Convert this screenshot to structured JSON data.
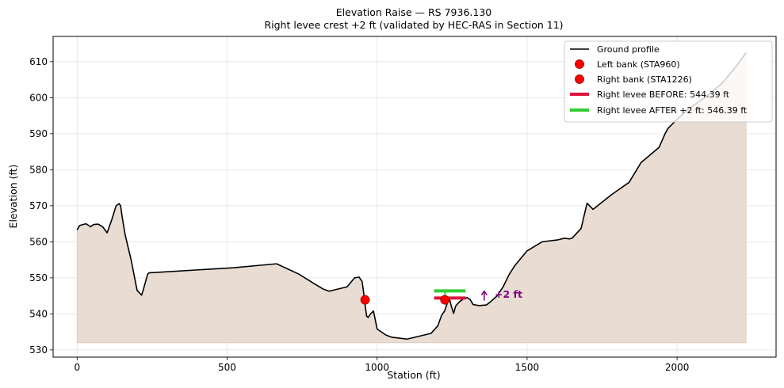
{
  "chart_data": {
    "type": "line",
    "title": "Elevation Raise — RS 7936.130",
    "subtitle": "Right levee crest +2 ft (validated by HEC-RAS in Section 11)",
    "xlabel": "Station (ft)",
    "ylabel": "Elevation (ft)",
    "xlim": [
      -80,
      2330
    ],
    "ylim": [
      528,
      617
    ],
    "xticks": [
      0,
      500,
      1000,
      1500,
      2000
    ],
    "yticks": [
      530,
      540,
      550,
      560,
      570,
      580,
      590,
      600,
      610
    ],
    "grid": true,
    "legend_position": "top-right",
    "fill_base": 532,
    "fill_color": "#e9ddd3",
    "ground_profile": {
      "name": "Ground profile",
      "color": "#000000",
      "x": [
        0,
        8,
        20,
        30,
        45,
        55,
        70,
        85,
        100,
        115,
        130,
        140,
        145,
        150,
        160,
        180,
        200,
        215,
        220,
        235,
        240,
        520,
        665,
        740,
        790,
        820,
        840,
        900,
        925,
        940,
        950,
        955,
        960,
        965,
        970,
        978,
        988,
        1000,
        1030,
        1050,
        1100,
        1180,
        1195,
        1202,
        1215,
        1225,
        1230,
        1240,
        1248,
        1255,
        1262,
        1275,
        1290,
        1300,
        1310,
        1320,
        1340,
        1365,
        1380,
        1400,
        1420,
        1440,
        1460,
        1500,
        1550,
        1600,
        1625,
        1640,
        1650,
        1680,
        1695,
        1700,
        1705,
        1720,
        1780,
        1840,
        1880,
        1940,
        1960,
        1970,
        2000,
        2040,
        2100,
        2150,
        2200,
        2230
      ],
      "y": [
        563.3,
        564.5,
        564.8,
        565.0,
        564.2,
        564.8,
        564.9,
        564.2,
        562.5,
        566.0,
        570.0,
        570.6,
        570.0,
        567.0,
        562.0,
        555.0,
        546.5,
        545.2,
        546.5,
        551.0,
        551.4,
        552.8,
        553.9,
        551.0,
        548.4,
        546.9,
        546.3,
        547.5,
        550.0,
        550.2,
        549.0,
        546.0,
        542.5,
        539.4,
        539.0,
        540.0,
        540.8,
        535.8,
        534.1,
        533.5,
        533.0,
        534.6,
        536.0,
        536.6,
        539.6,
        540.8,
        542.0,
        544.5,
        542.0,
        540.1,
        542.2,
        543.4,
        544.3,
        544.5,
        544.0,
        542.6,
        542.3,
        542.5,
        543.5,
        545.0,
        547.5,
        550.9,
        553.5,
        557.5,
        560.0,
        560.5,
        561.0,
        560.8,
        561.0,
        563.7,
        569.0,
        570.7,
        570.3,
        569.0,
        573.0,
        576.5,
        582.0,
        586.2,
        590.0,
        591.5,
        594.0,
        597.0,
        600.5,
        604.0,
        609.0,
        612.5
      ]
    },
    "left_bank": {
      "name": "Left bank (STA960)",
      "x": 960,
      "y": 543.9,
      "color": "#ff0000"
    },
    "right_bank": {
      "name": "Right bank (STA1226)",
      "x": 1226,
      "y": 543.9,
      "color": "#ff0000"
    },
    "levee_before": {
      "name": "Right levee BEFORE: 544.39 ft",
      "x": [
        1190,
        1295
      ],
      "y": 544.39,
      "color": "#dc143c"
    },
    "levee_after": {
      "name": "Right levee AFTER +2 ft: 546.39 ft",
      "x": [
        1190,
        1295
      ],
      "y": 546.39,
      "color": "#32cd32"
    },
    "annotation": {
      "text": "+2 ft",
      "color": "#800080",
      "arrow_x": 1357,
      "arrow_y_from": 543.7,
      "arrow_y_to": 546.3,
      "text_x": 1392,
      "text_y": 545.4
    }
  }
}
